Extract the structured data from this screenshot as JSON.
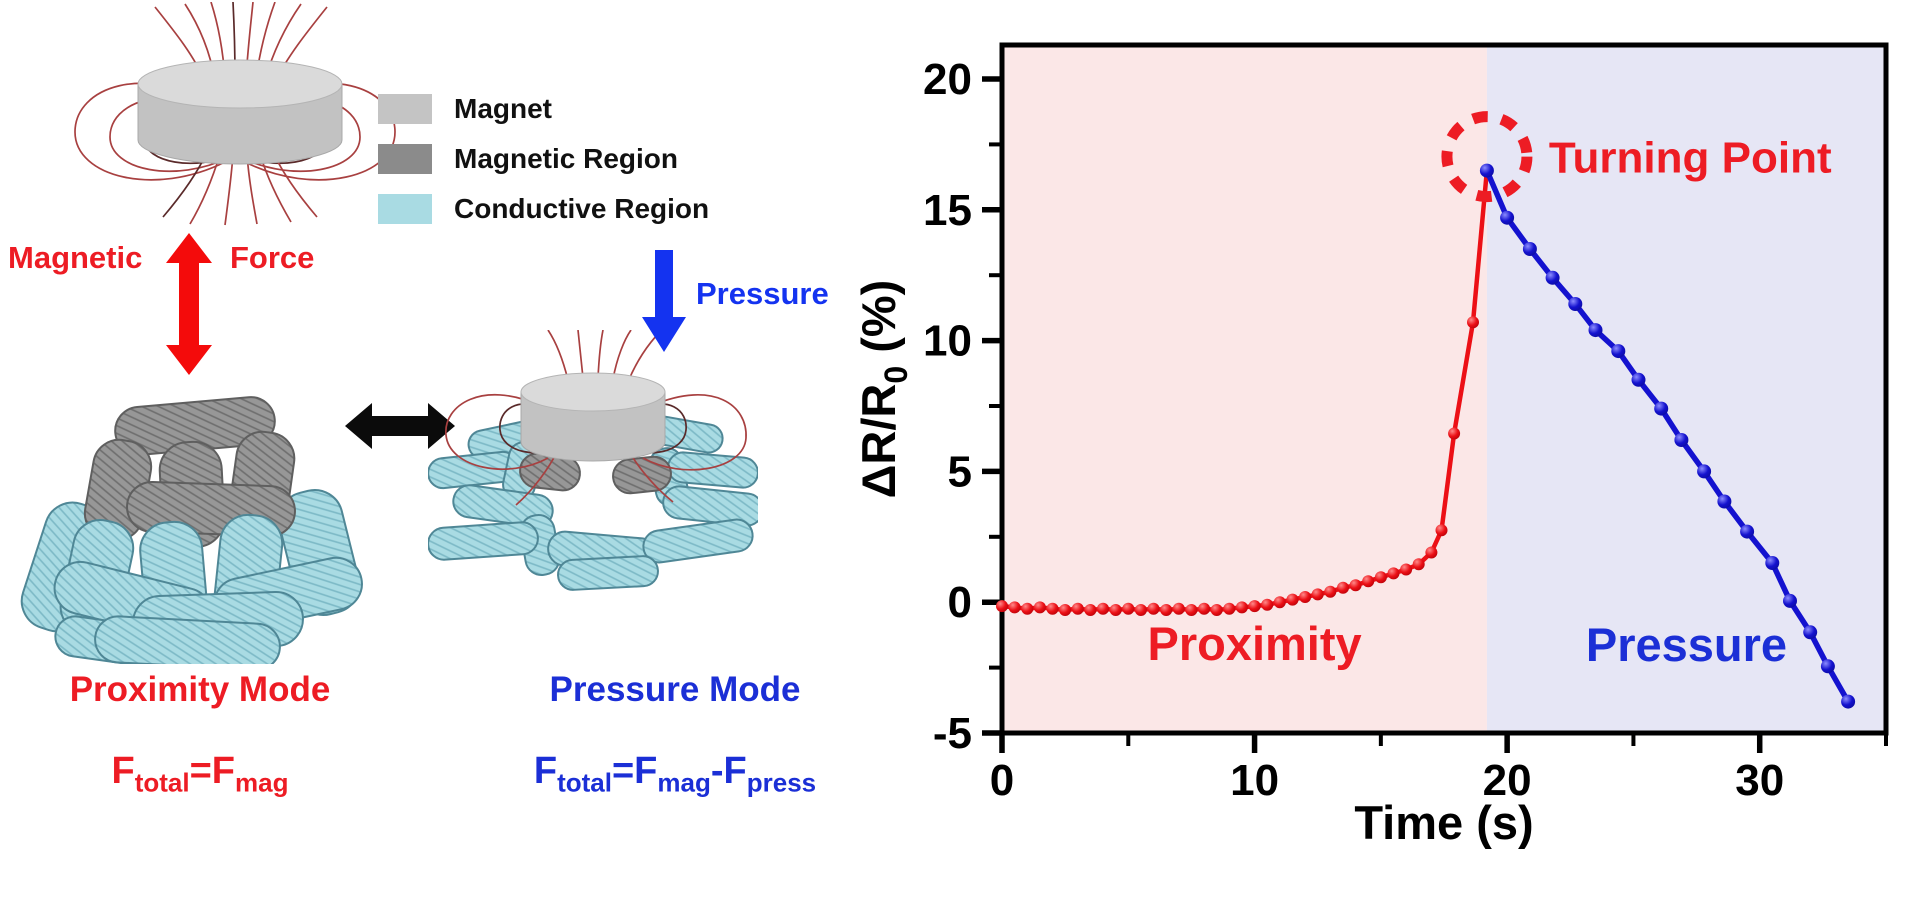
{
  "left_panel": {
    "legend": {
      "items": [
        {
          "label": "Magnet",
          "color": "#c4c4c4"
        },
        {
          "label": "Magnetic Region",
          "color": "#8b8b8b"
        },
        {
          "label": "Conductive Region",
          "color": "#a9dbe3"
        }
      ]
    },
    "magnetic_force": {
      "word1": "Magnetic",
      "word2": "Force",
      "color": "#ed1c24"
    },
    "pressure_arrow_label": "Pressure",
    "proximity_mode": {
      "title": "Proximity Mode",
      "color": "#ed1c24",
      "formula_parts": [
        [
          "F",
          false
        ],
        [
          "total",
          true
        ],
        [
          "=F",
          false
        ],
        [
          "mag",
          true
        ]
      ]
    },
    "pressure_mode": {
      "title": "Pressure Mode",
      "color": "#1b2fd6",
      "formula_parts": [
        [
          "F",
          false
        ],
        [
          "total",
          true
        ],
        [
          "=F",
          false
        ],
        [
          "mag",
          true
        ],
        [
          "-F",
          false
        ],
        [
          "press",
          true
        ]
      ]
    }
  },
  "chart_data": {
    "type": "line",
    "title": "",
    "xlabel": "Time (s)",
    "ylabel": "ΔR/R₀ (%)",
    "ylabel_parts": [
      [
        "ΔR/R",
        false
      ],
      [
        "0",
        true
      ],
      [
        " (%)",
        false
      ]
    ],
    "xlim": [
      0,
      35
    ],
    "ylim": [
      -5,
      21.3
    ],
    "x_major_ticks": [
      0,
      10,
      20,
      30
    ],
    "x_minor_ticks": [
      5,
      15,
      25,
      35
    ],
    "y_major_ticks": [
      -5,
      0,
      5,
      10,
      15,
      20
    ],
    "y_minor_ticks": [
      -2.5,
      2.5,
      7.5,
      12.5,
      17.5
    ],
    "grid": false,
    "regions": [
      {
        "label": "Proximity",
        "x0": 0,
        "x1": 19.2,
        "bg": "#fbe7e7",
        "label_color": "#ed1c24",
        "label_x": 10.0,
        "label_y": -2.2
      },
      {
        "label": "Pressure",
        "x0": 19.2,
        "x1": 35,
        "bg": "#e6e6f5",
        "label_color": "#1b2fd6",
        "label_x": 27.1,
        "label_y": -2.25
      }
    ],
    "annotation": {
      "label": "Turning Point",
      "color": "#ed1c24",
      "x": 19.2,
      "y": 16.5
    },
    "series": [
      {
        "name": "Proximity",
        "color": "#ec1016",
        "marker_hi": "#ff8a8a",
        "marker_lo": "#b50008",
        "marker_size": 6,
        "line_width": 4.5,
        "x": [
          0,
          0.5,
          1,
          1.5,
          2,
          2.5,
          3,
          3.5,
          4,
          4.5,
          5,
          5.5,
          6,
          6.5,
          7,
          7.5,
          8,
          8.5,
          9,
          9.5,
          10,
          10.5,
          11,
          11.5,
          12,
          12.5,
          13,
          13.5,
          14,
          14.5,
          15,
          15.5,
          16,
          16.5,
          17,
          17.4,
          17.9,
          18.65,
          19.2
        ],
        "y": [
          -0.15,
          -0.2,
          -0.25,
          -0.2,
          -0.25,
          -0.3,
          -0.25,
          -0.3,
          -0.25,
          -0.3,
          -0.25,
          -0.3,
          -0.25,
          -0.3,
          -0.25,
          -0.3,
          -0.25,
          -0.3,
          -0.25,
          -0.2,
          -0.15,
          -0.1,
          0,
          0.1,
          0.2,
          0.3,
          0.4,
          0.55,
          0.65,
          0.8,
          0.95,
          1.1,
          1.25,
          1.45,
          1.9,
          2.75,
          6.45,
          10.7,
          16.5
        ]
      },
      {
        "name": "Pressure",
        "color": "#1412cf",
        "marker_hi": "#8c8cff",
        "marker_lo": "#0b0b9e",
        "marker_size": 7,
        "line_width": 5.5,
        "x": [
          19.2,
          20.0,
          20.9,
          21.8,
          22.7,
          23.5,
          24.4,
          25.2,
          26.1,
          26.9,
          27.8,
          28.6,
          29.5,
          30.5,
          31.2,
          32.0,
          32.7,
          33.5
        ],
        "y": [
          16.5,
          14.7,
          13.5,
          12.4,
          11.4,
          10.4,
          9.6,
          8.5,
          7.4,
          6.2,
          5.0,
          3.85,
          2.7,
          1.5,
          0.05,
          -1.15,
          -2.45,
          -3.8
        ]
      }
    ]
  }
}
